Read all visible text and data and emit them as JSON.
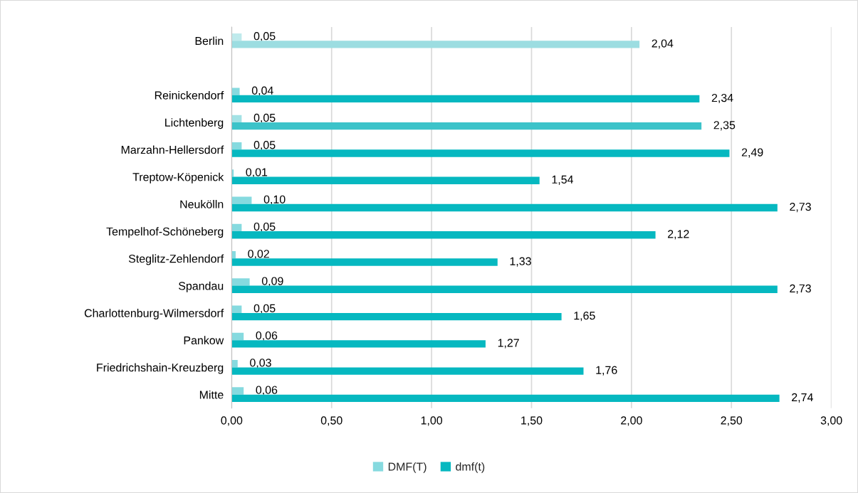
{
  "chart_data": {
    "type": "bar",
    "orientation": "horizontal",
    "categories": [
      "Berlin",
      null,
      "Reinickendorf",
      "Lichtenberg",
      "Marzahn-Hellersdorf",
      "Treptow-Köpenick",
      "Neukölln",
      "Tempelhof-Schöneberg",
      "Steglitz-Zehlendorf",
      "Spandau",
      "Charlottenburg-Wilmersdorf",
      "Pankow",
      "Friedrichshain-Kreuzberg",
      "Mitte"
    ],
    "series": [
      {
        "name": "DMF(T)",
        "color": "#86dadf",
        "colors": [
          "#bfeaec",
          null,
          "#86dadf",
          "#a3e2e5",
          "#86dadf",
          "#86dadf",
          "#86dadf",
          "#86dadf",
          "#86dadf",
          "#86dadf",
          "#86dadf",
          "#86dadf",
          "#86dadf",
          "#86dadf"
        ],
        "values": [
          0.05,
          null,
          0.04,
          0.05,
          0.05,
          0.01,
          0.1,
          0.05,
          0.02,
          0.09,
          0.05,
          0.06,
          0.03,
          0.06
        ],
        "value_labels": [
          "0,05",
          null,
          "0,04",
          "0,05",
          "0,05",
          "0,01",
          "0,10",
          "0,05",
          "0,02",
          "0,09",
          "0,05",
          "0,06",
          "0,03",
          "0,06"
        ]
      },
      {
        "name": "dmf(t)",
        "color": "#06b8c0",
        "colors": [
          "#9cdde1",
          null,
          "#06b8c0",
          "#3cc3c9",
          "#06b8c0",
          "#06b8c0",
          "#06b8c0",
          "#06b8c0",
          "#06b8c0",
          "#06b8c0",
          "#06b8c0",
          "#06b8c0",
          "#06b8c0",
          "#06b8c0"
        ],
        "values": [
          2.04,
          null,
          2.34,
          2.35,
          2.49,
          1.54,
          2.73,
          2.12,
          1.33,
          2.73,
          1.65,
          1.27,
          1.76,
          2.74
        ],
        "value_labels": [
          "2,04",
          null,
          "2,34",
          "2,35",
          "2,49",
          "1,54",
          "2,73",
          "2,12",
          "1,33",
          "2,73",
          "1,65",
          "1,27",
          "1,76",
          "2,74"
        ]
      }
    ],
    "xlim": [
      0,
      3
    ],
    "xticks": [
      {
        "value": 0,
        "label": "0,00"
      },
      {
        "value": 0.5,
        "label": "0,50"
      },
      {
        "value": 1,
        "label": "1,00"
      },
      {
        "value": 1.5,
        "label": "1,50"
      },
      {
        "value": 2,
        "label": "2,00"
      },
      {
        "value": 2.5,
        "label": "2,50"
      },
      {
        "value": 3,
        "label": "3,00"
      }
    ],
    "grid": "x",
    "legend": "bottom"
  }
}
